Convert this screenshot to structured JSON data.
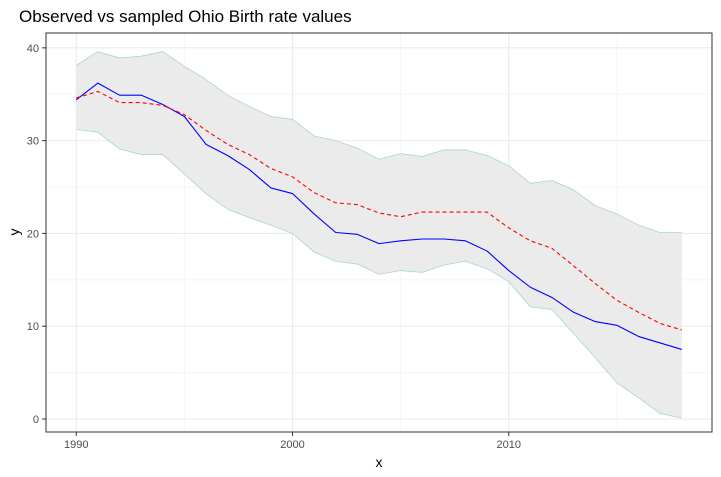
{
  "chart_data": {
    "type": "line",
    "title": "Observed vs sampled Ohio Birth rate values",
    "xlabel": "x",
    "ylabel": "y",
    "xlim": [
      1988.6,
      2019.4
    ],
    "ylim": [
      -1.4,
      41.6
    ],
    "x_ticks": [
      1990,
      2000,
      2010
    ],
    "y_ticks": [
      0,
      10,
      20,
      30,
      40
    ],
    "grid": true,
    "legend": "none",
    "x": [
      1990,
      1991,
      1992,
      1993,
      1994,
      1995,
      1996,
      1997,
      1998,
      1999,
      2000,
      2001,
      2002,
      2003,
      2004,
      2005,
      2006,
      2007,
      2008,
      2009,
      2010,
      2011,
      2012,
      2013,
      2014,
      2015,
      2016,
      2017,
      2018
    ],
    "series": [
      {
        "role": "observed",
        "color": "#0000ff",
        "style": "solid",
        "values": [
          34.4,
          36.2,
          34.9,
          34.9,
          33.9,
          32.6,
          29.6,
          28.4,
          26.9,
          24.9,
          24.3,
          22.1,
          20.1,
          19.9,
          18.9,
          19.2,
          19.4,
          19.4,
          19.2,
          18.1,
          16.0,
          14.2,
          13.1,
          11.5,
          10.5,
          10.1,
          8.9,
          8.2,
          7.5
        ]
      },
      {
        "role": "sampled",
        "color": "#ff0000",
        "style": "dashed",
        "values": [
          34.6,
          35.3,
          34.1,
          34.1,
          33.8,
          32.8,
          31.1,
          29.6,
          28.5,
          27.0,
          26.1,
          24.4,
          23.3,
          23.1,
          22.2,
          21.8,
          22.3,
          22.3,
          22.3,
          22.3,
          20.6,
          19.2,
          18.4,
          16.5,
          14.6,
          12.8,
          11.5,
          10.3,
          9.6
        ]
      }
    ],
    "ribbon": {
      "fill": "#ebebeb",
      "stroke": "#a9d3de",
      "lower": [
        31.2,
        30.9,
        29.1,
        28.5,
        28.5,
        26.4,
        24.3,
        22.6,
        21.7,
        20.9,
        20.0,
        18.0,
        17.0,
        16.7,
        15.6,
        16.0,
        15.8,
        16.6,
        17.0,
        16.2,
        14.8,
        12.1,
        11.8,
        9.2,
        6.6,
        3.9,
        2.3,
        0.6,
        0.1
      ],
      "upper": [
        38.1,
        39.6,
        38.9,
        39.1,
        39.6,
        38.0,
        36.6,
        34.9,
        33.7,
        32.6,
        32.3,
        30.5,
        30.0,
        29.2,
        28.0,
        28.6,
        28.3,
        29.0,
        29.0,
        28.4,
        27.3,
        25.4,
        25.7,
        24.7,
        23.0,
        22.1,
        20.9,
        20.1,
        20.1
      ]
    },
    "colors": {
      "panel_border": "#333333",
      "grid_major": "#ebebeb",
      "grid_minor": "#f5f5f5",
      "tick": "#333333"
    }
  }
}
